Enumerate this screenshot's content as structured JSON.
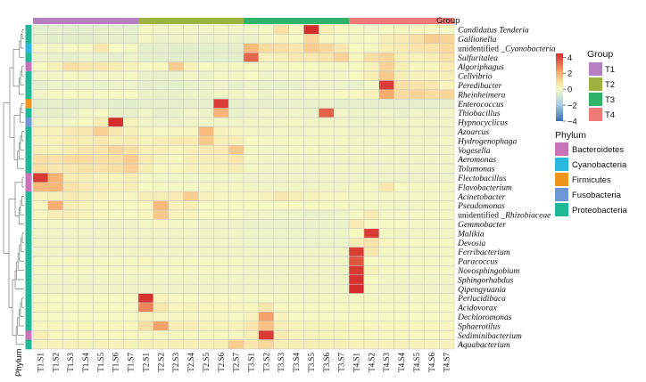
{
  "chart_data": {
    "type": "heatmap",
    "title": "",
    "columns": [
      "T1.S1",
      "T1.S2",
      "T1.S3",
      "T1.S4",
      "T1.S5",
      "T1.S6",
      "T1.S7",
      "T2.S1",
      "T2.S2",
      "T2.S3",
      "T2.S4",
      "T2.S5",
      "T2.S6",
      "T2.S7",
      "T3.S1",
      "T3.S2",
      "T3.S3",
      "T3.S4",
      "T3.S5",
      "T3.S6",
      "T3.S7",
      "T4.S1",
      "T4.S2",
      "T4.S3",
      "T4.S4",
      "T4.S5",
      "T4.S6",
      "T4.S7"
    ],
    "column_groups": [
      "T1",
      "T1",
      "T1",
      "T1",
      "T1",
      "T1",
      "T1",
      "T2",
      "T2",
      "T2",
      "T2",
      "T2",
      "T2",
      "T2",
      "T3",
      "T3",
      "T3",
      "T3",
      "T3",
      "T3",
      "T3",
      "T4",
      "T4",
      "T4",
      "T4",
      "T4",
      "T4",
      "T4"
    ],
    "rows": [
      "Candidatus_Tenderia",
      "Gallionella",
      "unidentified_Cyanobacteria",
      "Sulfuritalea",
      "Algoriphagus",
      "Cellvibrio",
      "Peredibacter",
      "Rheinheimera",
      "Enterococcus",
      "Thiobacillus",
      "Hypnocyclicus",
      "Azoarcus",
      "Hydrogenophaga",
      "Vogesella",
      "Aeromonas",
      "Tolumonas",
      "Flectobacillus",
      "Flavobacterium",
      "Acinetobacter",
      "Pseudomonas",
      "unidentified_Rhizobiaceae",
      "Gemmobacter",
      "Malikia",
      "Devosia",
      "Ferribacterium",
      "Paracoccus",
      "Novosphingobium",
      "Sphingorhabdus",
      "Qipengyuania",
      "Perlucidibaca",
      "Acidovorax",
      "Dechloromonas",
      "Sphaerotilus",
      "Sediminibacterium",
      "Aquabacterium"
    ],
    "row_phylum": [
      "Proteobacteria",
      "Proteobacteria",
      "Cyanobacteria",
      "Proteobacteria",
      "Bacteroidetes",
      "Proteobacteria",
      "Proteobacteria",
      "Proteobacteria",
      "Firmicutes",
      "Proteobacteria",
      "Fusobacteria",
      "Proteobacteria",
      "Proteobacteria",
      "Proteobacteria",
      "Proteobacteria",
      "Proteobacteria",
      "Bacteroidetes",
      "Bacteroidetes",
      "Proteobacteria",
      "Proteobacteria",
      "Proteobacteria",
      "Proteobacteria",
      "Proteobacteria",
      "Proteobacteria",
      "Proteobacteria",
      "Proteobacteria",
      "Proteobacteria",
      "Proteobacteria",
      "Proteobacteria",
      "Proteobacteria",
      "Proteobacteria",
      "Proteobacteria",
      "Proteobacteria",
      "Bacteroidetes",
      "Proteobacteria"
    ],
    "values": [
      [
        -0.3,
        -0.3,
        -0.3,
        -0.3,
        -0.3,
        -0.3,
        -0.3,
        0.2,
        0.1,
        0.1,
        0.1,
        0.1,
        0.1,
        0.1,
        0.1,
        0.2,
        1.0,
        0.4,
        4.5,
        0.6,
        0.4,
        0.2,
        0.1,
        0.3,
        0.4,
        0.4,
        0.4,
        0.3
      ],
      [
        -0.2,
        -0.3,
        -0.3,
        -0.3,
        -0.2,
        -0.2,
        -0.2,
        0.2,
        0.0,
        0.1,
        0.1,
        0.0,
        0.1,
        0.0,
        0.0,
        0.2,
        0.5,
        0.3,
        1.2,
        0.4,
        0.3,
        0.2,
        0.3,
        0.6,
        0.7,
        1.0,
        1.5,
        1.3
      ],
      [
        0.2,
        0.1,
        0.2,
        0.2,
        0.8,
        0.3,
        0.2,
        -0.2,
        -0.3,
        -0.3,
        -0.3,
        -0.3,
        -0.2,
        -0.3,
        2.0,
        1.1,
        1.0,
        0.8,
        1.5,
        1.2,
        0.8,
        0.3,
        0.2,
        0.6,
        0.7,
        0.9,
        0.9,
        1.2
      ],
      [
        0.0,
        -0.1,
        -0.2,
        0.0,
        -0.2,
        -0.2,
        0.0,
        -0.2,
        -0.3,
        -0.3,
        -0.3,
        -0.3,
        -0.2,
        -0.3,
        3.5,
        0.5,
        0.6,
        0.8,
        0.8,
        0.9,
        1.3,
        0.4,
        1.0,
        1.3,
        0.6,
        0.5,
        0.6,
        1.0
      ],
      [
        0.3,
        0.5,
        1.0,
        0.8,
        0.8,
        0.6,
        0.5,
        0.3,
        0.4,
        1.5,
        0.5,
        0.3,
        0.2,
        0.2,
        0.2,
        0.2,
        0.2,
        0.3,
        0.3,
        0.2,
        0.2,
        0.3,
        0.5,
        1.3,
        0.6,
        0.4,
        0.4,
        0.7
      ],
      [
        0.1,
        0.1,
        0.2,
        0.1,
        0.1,
        0.1,
        0.2,
        -0.1,
        -0.2,
        -0.1,
        0.1,
        -0.1,
        0.2,
        0.1,
        0.3,
        0.0,
        0.1,
        0.1,
        0.2,
        0.1,
        0.1,
        0.3,
        0.6,
        1.6,
        0.6,
        0.5,
        0.5,
        0.6
      ],
      [
        -0.2,
        0.0,
        -0.1,
        0.0,
        -0.1,
        0.0,
        0.0,
        -0.2,
        -0.2,
        -0.2,
        -0.1,
        -0.1,
        0.0,
        -0.1,
        0.0,
        -0.1,
        -0.1,
        -0.1,
        0.0,
        0.0,
        0.0,
        -0.1,
        0.2,
        4.2,
        1.0,
        0.9,
        0.8,
        0.5
      ],
      [
        0.1,
        0.3,
        0.3,
        0.3,
        0.2,
        0.3,
        0.3,
        0.0,
        -0.1,
        -0.1,
        0.0,
        0.0,
        0.1,
        0.1,
        0.2,
        0.0,
        0.1,
        0.1,
        0.2,
        0.2,
        0.3,
        0.4,
        0.5,
        2.3,
        1.1,
        1.3,
        1.1,
        1.3
      ],
      [
        -0.3,
        -0.2,
        -0.3,
        -0.2,
        -0.2,
        -0.3,
        -0.3,
        -0.2,
        -0.2,
        -0.2,
        -0.2,
        -0.2,
        4.2,
        -0.2,
        -0.1,
        -0.2,
        -0.2,
        -0.1,
        -0.1,
        -0.1,
        -0.2,
        -0.2,
        -0.2,
        -0.2,
        -0.2,
        -0.2,
        -0.2,
        -0.2
      ],
      [
        -0.2,
        -0.2,
        -0.1,
        0.2,
        0.2,
        -0.1,
        -0.1,
        0.1,
        -0.2,
        -0.1,
        0.1,
        0.0,
        2.2,
        -0.1,
        0.0,
        0.1,
        0.0,
        0.1,
        0.0,
        3.6,
        0.1,
        0.0,
        0.0,
        0.1,
        -0.1,
        0.1,
        0.0,
        0.1
      ],
      [
        0.0,
        0.1,
        0.1,
        0.3,
        0.6,
        4.5,
        0.5,
        0.1,
        0.0,
        0.0,
        0.1,
        0.1,
        0.1,
        0.1,
        0.1,
        0.1,
        0.1,
        0.2,
        0.1,
        0.1,
        0.1,
        0.0,
        0.0,
        0.1,
        0.1,
        0.1,
        0.1,
        0.1
      ],
      [
        0.5,
        0.5,
        0.7,
        0.8,
        1.4,
        0.8,
        0.6,
        0.4,
        0.3,
        0.4,
        0.4,
        2.0,
        0.5,
        0.4,
        0.2,
        0.1,
        0.2,
        0.1,
        0.2,
        0.2,
        0.2,
        0.1,
        0.1,
        0.2,
        0.1,
        0.2,
        0.1,
        0.1
      ],
      [
        0.5,
        0.5,
        0.7,
        0.6,
        0.8,
        0.6,
        0.7,
        0.5,
        0.6,
        0.7,
        0.7,
        1.6,
        0.6,
        0.6,
        0.3,
        0.2,
        0.2,
        0.2,
        0.2,
        0.2,
        0.2,
        0.1,
        0.1,
        0.2,
        0.1,
        0.1,
        0.1,
        0.2
      ],
      [
        0.6,
        0.5,
        0.7,
        0.8,
        0.9,
        1.2,
        1.0,
        0.6,
        0.6,
        0.5,
        0.6,
        0.7,
        0.7,
        1.6,
        0.2,
        0.1,
        0.1,
        0.2,
        0.2,
        0.1,
        0.1,
        0.1,
        0.1,
        0.1,
        0.1,
        0.1,
        0.1,
        0.1
      ],
      [
        1.0,
        0.9,
        1.1,
        1.1,
        1.0,
        1.0,
        1.5,
        0.7,
        0.5,
        0.4,
        0.6,
        0.6,
        0.6,
        0.8,
        0.2,
        0.1,
        0.1,
        0.1,
        0.1,
        0.1,
        0.1,
        0.1,
        0.1,
        0.1,
        0.1,
        0.1,
        0.1,
        0.1
      ],
      [
        1.0,
        0.8,
        0.8,
        0.9,
        0.9,
        1.0,
        1.4,
        0.6,
        0.4,
        0.4,
        0.5,
        0.5,
        0.5,
        0.6,
        0.2,
        0.1,
        0.1,
        0.1,
        0.1,
        0.1,
        0.1,
        0.1,
        0.1,
        0.1,
        0.1,
        0.1,
        0.1,
        0.1
      ],
      [
        4.3,
        2.2,
        0.7,
        0.6,
        0.5,
        0.5,
        0.6,
        0.2,
        0.1,
        0.1,
        0.1,
        0.1,
        0.1,
        0.1,
        0.0,
        0.0,
        0.0,
        0.0,
        0.0,
        0.0,
        0.0,
        0.0,
        0.0,
        0.0,
        0.0,
        0.0,
        0.0,
        0.0
      ],
      [
        2.0,
        2.1,
        0.9,
        0.7,
        0.6,
        0.5,
        0.6,
        0.3,
        0.2,
        0.2,
        0.2,
        0.2,
        0.2,
        0.2,
        0.1,
        0.1,
        0.1,
        0.1,
        0.1,
        0.1,
        0.1,
        0.2,
        0.2,
        0.8,
        0.3,
        0.2,
        0.2,
        0.2
      ],
      [
        0.5,
        0.6,
        0.7,
        0.6,
        0.5,
        0.4,
        0.4,
        0.6,
        0.6,
        0.7,
        1.5,
        0.5,
        0.4,
        0.4,
        0.4,
        0.5,
        0.8,
        0.6,
        0.5,
        0.4,
        0.4,
        0.2,
        0.2,
        0.2,
        0.2,
        0.2,
        0.2,
        0.2
      ],
      [
        0.4,
        2.3,
        0.6,
        0.5,
        0.4,
        0.3,
        0.3,
        0.4,
        2.0,
        0.5,
        0.6,
        0.3,
        0.3,
        0.3,
        0.3,
        0.3,
        0.3,
        0.3,
        0.3,
        0.3,
        0.2,
        0.1,
        0.2,
        0.1,
        0.1,
        0.1,
        0.2,
        0.2
      ],
      [
        0.4,
        0.6,
        0.6,
        0.5,
        0.4,
        0.3,
        0.3,
        0.4,
        1.6,
        0.5,
        0.5,
        0.3,
        0.3,
        0.3,
        0.1,
        0.1,
        0.0,
        0.0,
        -0.1,
        -0.1,
        0.0,
        0.2,
        0.7,
        0.2,
        0.2,
        0.2,
        0.2,
        0.2
      ],
      [
        0.2,
        0.2,
        0.2,
        0.2,
        0.1,
        0.1,
        0.1,
        0.2,
        0.4,
        0.2,
        0.2,
        0.1,
        0.1,
        0.1,
        0.0,
        0.0,
        0.0,
        0.0,
        0.0,
        0.0,
        0.0,
        0.7,
        0.4,
        0.3,
        0.3,
        0.2,
        0.2,
        0.2
      ],
      [
        0.1,
        0.1,
        0.1,
        0.1,
        0.1,
        0.1,
        0.1,
        0.1,
        0.1,
        0.1,
        0.1,
        0.1,
        0.1,
        0.1,
        0.0,
        0.0,
        0.0,
        0.0,
        0.0,
        0.0,
        0.0,
        0.3,
        4.2,
        0.2,
        0.1,
        0.1,
        0.1,
        0.1
      ],
      [
        0.1,
        0.1,
        0.1,
        0.1,
        0.1,
        0.1,
        0.1,
        0.1,
        0.1,
        0.1,
        0.1,
        0.1,
        0.1,
        0.1,
        0.0,
        0.0,
        0.0,
        0.0,
        0.0,
        0.0,
        0.0,
        0.6,
        0.9,
        0.4,
        0.3,
        0.3,
        0.3,
        0.3
      ],
      [
        0.1,
        0.1,
        0.1,
        0.1,
        0.1,
        0.1,
        0.1,
        0.1,
        0.1,
        0.1,
        0.1,
        0.1,
        0.1,
        0.1,
        0.1,
        0.1,
        0.1,
        0.1,
        0.1,
        0.1,
        0.1,
        4.2,
        0.8,
        0.2,
        0.2,
        0.2,
        0.2,
        0.2
      ],
      [
        0.2,
        0.2,
        0.4,
        0.2,
        0.2,
        0.2,
        0.2,
        0.4,
        0.2,
        0.2,
        0.2,
        0.2,
        0.2,
        0.2,
        0.1,
        0.1,
        0.1,
        0.1,
        0.1,
        0.1,
        0.1,
        3.8,
        0.3,
        0.2,
        0.2,
        0.2,
        0.2,
        0.2
      ],
      [
        0.2,
        0.2,
        0.2,
        0.2,
        0.2,
        0.2,
        0.2,
        0.2,
        0.2,
        0.2,
        0.2,
        0.2,
        0.2,
        0.2,
        0.1,
        0.1,
        0.1,
        0.1,
        0.1,
        0.1,
        0.1,
        4.3,
        0.5,
        0.2,
        0.2,
        0.2,
        0.2,
        0.2
      ],
      [
        0.1,
        0.1,
        0.1,
        0.1,
        0.1,
        0.1,
        0.1,
        0.1,
        0.1,
        0.1,
        0.1,
        0.1,
        0.1,
        0.1,
        0.1,
        0.1,
        0.1,
        0.1,
        0.1,
        0.1,
        0.1,
        4.4,
        0.3,
        0.1,
        0.1,
        0.1,
        0.1,
        0.1
      ],
      [
        0.1,
        0.1,
        0.1,
        0.1,
        0.1,
        0.1,
        0.1,
        0.1,
        0.1,
        0.1,
        0.1,
        0.1,
        0.1,
        0.1,
        0.1,
        0.1,
        0.1,
        0.1,
        0.1,
        0.1,
        0.1,
        4.5,
        0.2,
        0.1,
        0.1,
        0.1,
        0.1,
        0.1
      ],
      [
        0.3,
        0.3,
        0.3,
        0.3,
        0.3,
        0.3,
        0.3,
        4.4,
        0.5,
        0.3,
        0.3,
        0.3,
        0.3,
        0.3,
        0.2,
        0.3,
        0.2,
        0.2,
        0.2,
        0.2,
        0.2,
        0.2,
        0.2,
        0.2,
        0.2,
        0.2,
        0.2,
        0.2
      ],
      [
        0.4,
        0.3,
        0.3,
        0.3,
        0.3,
        0.3,
        0.3,
        3.0,
        0.8,
        0.4,
        0.5,
        0.4,
        0.4,
        0.4,
        0.4,
        0.8,
        0.3,
        0.3,
        0.3,
        0.3,
        0.3,
        0.3,
        0.3,
        0.3,
        0.3,
        0.3,
        0.3,
        0.3
      ],
      [
        0.3,
        0.3,
        0.3,
        0.3,
        0.3,
        0.3,
        0.3,
        0.5,
        0.4,
        0.4,
        0.4,
        0.4,
        0.4,
        0.3,
        0.5,
        2.5,
        0.5,
        0.3,
        0.3,
        0.3,
        0.3,
        0.3,
        0.3,
        0.3,
        0.3,
        0.3,
        0.3,
        0.3
      ],
      [
        0.4,
        0.4,
        0.4,
        0.4,
        0.4,
        0.4,
        0.4,
        1.0,
        2.5,
        0.6,
        0.6,
        0.5,
        0.5,
        0.5,
        0.8,
        1.8,
        0.6,
        0.5,
        0.5,
        0.5,
        0.5,
        0.4,
        0.4,
        0.4,
        0.4,
        0.4,
        0.4,
        0.4
      ],
      [
        0.6,
        0.4,
        0.4,
        0.4,
        0.4,
        0.4,
        0.4,
        0.4,
        0.4,
        0.4,
        0.4,
        0.4,
        0.4,
        0.4,
        0.6,
        4.3,
        0.7,
        0.5,
        0.5,
        0.5,
        0.5,
        0.4,
        0.4,
        0.4,
        0.4,
        0.4,
        0.4,
        0.4
      ],
      [
        0.5,
        0.5,
        0.5,
        0.5,
        0.5,
        0.5,
        0.5,
        0.6,
        0.6,
        0.6,
        0.6,
        0.6,
        0.6,
        1.5,
        0.8,
        1.2,
        0.6,
        0.6,
        0.6,
        0.6,
        0.6,
        0.5,
        0.5,
        0.5,
        0.5,
        0.5,
        0.5,
        0.5
      ]
    ],
    "color_scale": {
      "min": -4,
      "max": 4.5,
      "ticks": [
        4,
        2,
        0,
        -2,
        -4
      ],
      "colors": [
        "#3a6fb0",
        "#a6cde4",
        "#f7f9c4",
        "#f9b373",
        "#d42d2d"
      ]
    },
    "group_legend": {
      "title": "Group",
      "entries": [
        "T1",
        "T2",
        "T3",
        "T4"
      ],
      "colors": [
        "#b57fc0",
        "#9cb13f",
        "#2fb26a",
        "#ef7a78"
      ]
    },
    "phylum_legend": {
      "title": "Phylum",
      "entries": [
        "Bacteroidetes",
        "Cyanobacteria",
        "Firmicutes",
        "Fusobacteria",
        "Proteobacteria"
      ],
      "colors": [
        "#c973b8",
        "#2ab8df",
        "#f0961c",
        "#6c99d6",
        "#1fb897"
      ]
    },
    "group_bar_label": "Group",
    "phylum_bar_label": "Phylum"
  }
}
